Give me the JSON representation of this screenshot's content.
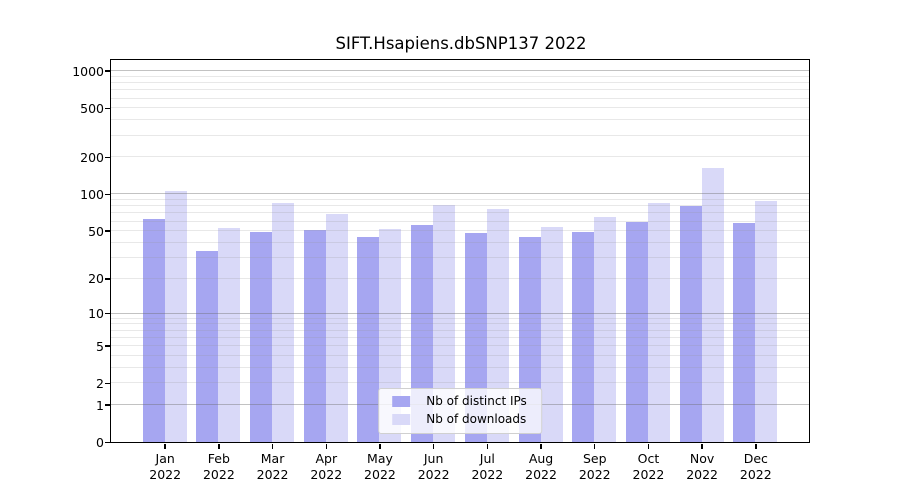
{
  "title": "SIFT.Hsapiens.dbSNP137 2022",
  "chart_data": {
    "type": "bar",
    "title": "SIFT.Hsapiens.dbSNP137 2022",
    "scale": "log10(1+x)",
    "categories": [
      "Jan",
      "Feb",
      "Mar",
      "Apr",
      "May",
      "Jun",
      "Jul",
      "Aug",
      "Sep",
      "Oct",
      "Nov",
      "Dec"
    ],
    "year": "2022",
    "series": [
      {
        "name": "Nb of distinct IPs",
        "color": "#a6a6f1",
        "values": [
          62,
          34,
          49,
          51,
          44,
          56,
          48,
          44,
          49,
          59,
          79,
          58
        ]
      },
      {
        "name": "Nb of downloads",
        "color": "#d9d9f8",
        "values": [
          106,
          53,
          85,
          69,
          52,
          82,
          75,
          54,
          65,
          84,
          163,
          87
        ]
      }
    ],
    "y_ticks": [
      0,
      1,
      2,
      5,
      10,
      20,
      50,
      100,
      200,
      500,
      1000
    ],
    "y_major_gridlines": [
      1,
      10,
      100,
      1000
    ],
    "ylim": [
      0,
      1220
    ],
    "grid": true,
    "legend_position": "bottom-center-inside",
    "background": "#ffffff",
    "axis_color": "#000000"
  }
}
